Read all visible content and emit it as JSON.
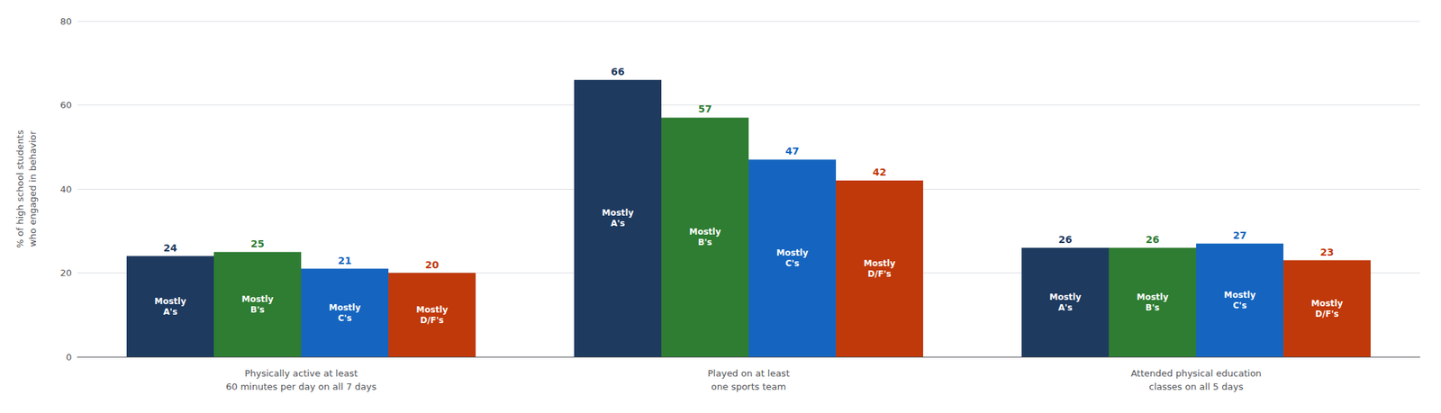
{
  "chart_data": {
    "type": "bar",
    "categories": [
      "Physically active at least\n60 minutes per day on all 7 days",
      "Played on at least\none sports team",
      "Attended physical education\nclasses on all 5 days"
    ],
    "series": [
      {
        "name": "Mostly\nA's",
        "color": "#1e3a5f",
        "values": [
          24,
          66,
          26
        ]
      },
      {
        "name": "Mostly\nB's",
        "color": "#2e7d32",
        "values": [
          25,
          57,
          26
        ]
      },
      {
        "name": "Mostly\nC's",
        "color": "#1565c0",
        "values": [
          21,
          47,
          27
        ]
      },
      {
        "name": "Mostly\nD/F's",
        "color": "#c0390a",
        "values": [
          20,
          42,
          23
        ]
      }
    ],
    "ylabel": "% of high school students\nwho engaged in behavior",
    "ylim": [
      0,
      80
    ],
    "yticks": [
      0,
      20,
      40,
      60,
      80
    ],
    "grid": true,
    "data_labels": true
  }
}
